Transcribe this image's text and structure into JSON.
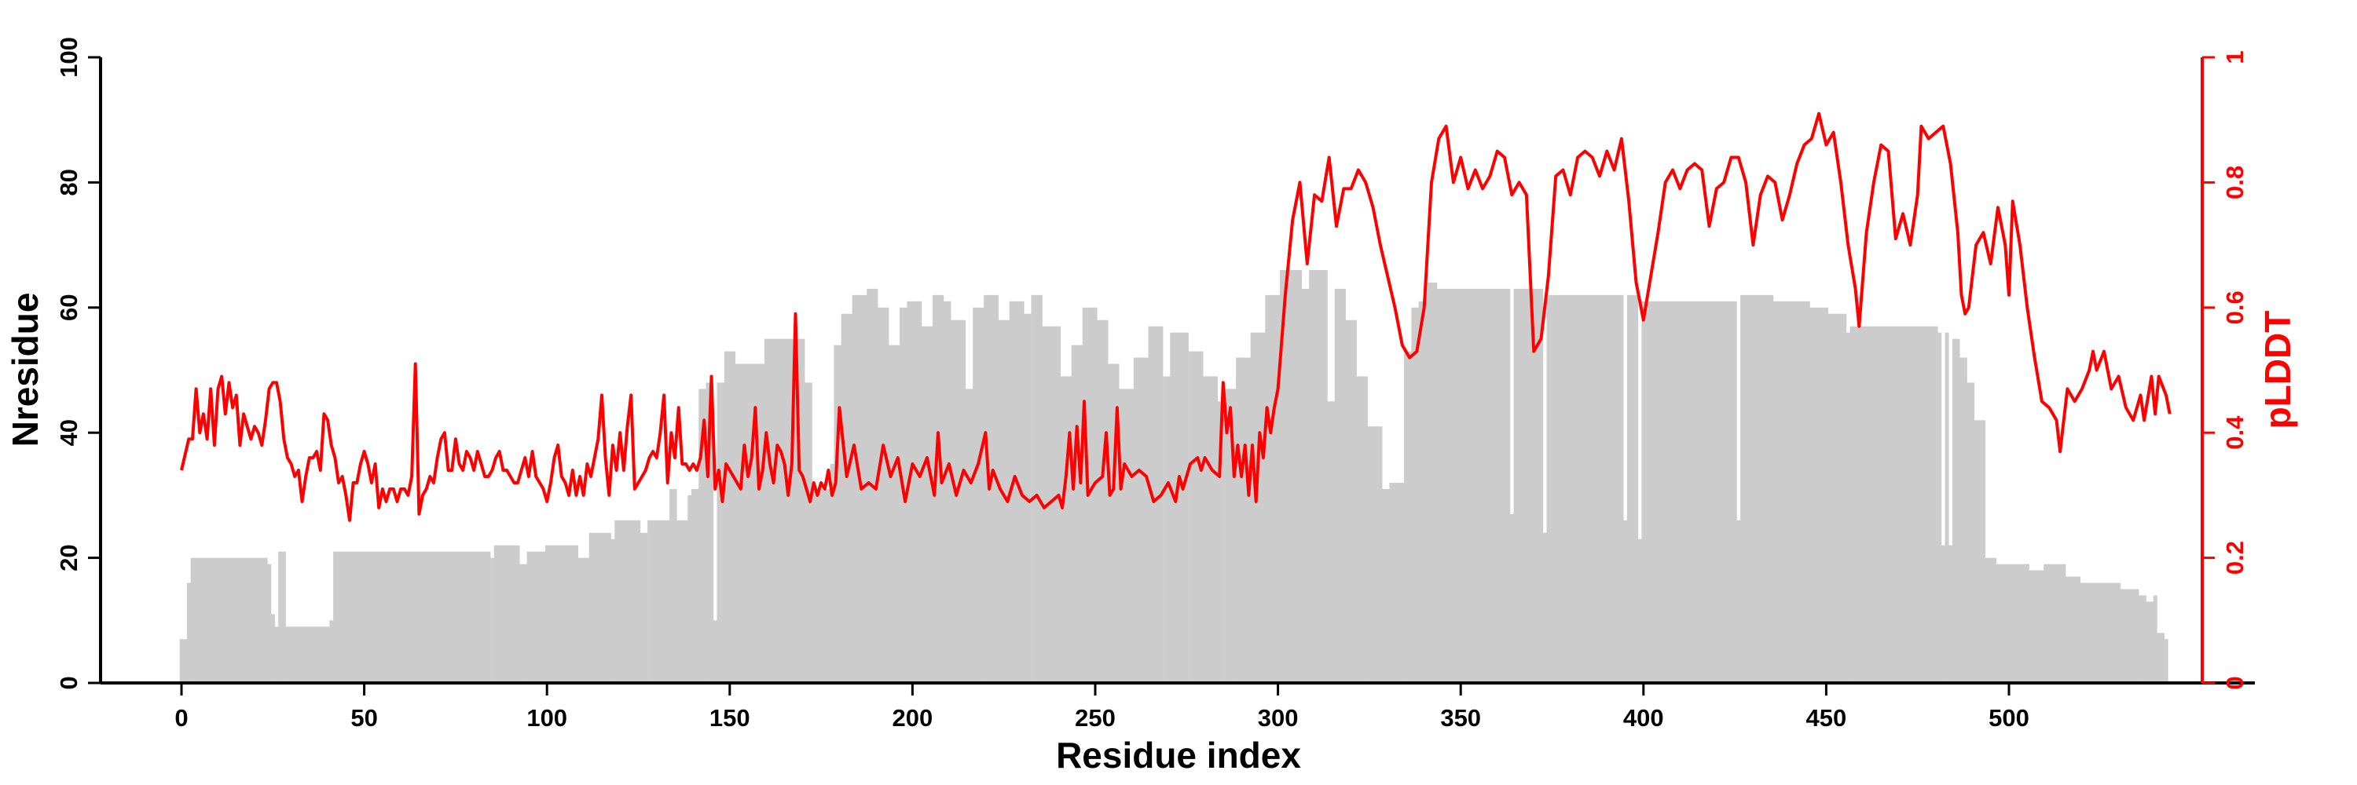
{
  "chart_data": {
    "type": "bar+line",
    "xlabel": "Residue index",
    "ylabel": "Nresidue",
    "y2label": "pLDDT",
    "xlim": [
      -10,
      560
    ],
    "ylim": [
      0,
      100
    ],
    "y2lim": [
      0,
      1
    ],
    "xticks": [
      "0",
      "50",
      "100",
      "150",
      "200",
      "250",
      "300",
      "350",
      "400",
      "450",
      "500"
    ],
    "yticks": [
      "0",
      "20",
      "40",
      "60",
      "80",
      "100"
    ],
    "y2ticks": [
      "0",
      "0.2",
      "0.4",
      "0.6",
      "0.8",
      "1"
    ],
    "colors": {
      "bars": "#cccccc",
      "line": "#ff0000",
      "axis": "#000000",
      "y2axis": "#ff0000"
    },
    "bars_runs_note": "Nresidue per residue as [start, end, value]",
    "nresidue_runs": [
      [
        0,
        1,
        7
      ],
      [
        2,
        2,
        16
      ],
      [
        3,
        23,
        20
      ],
      [
        24,
        24,
        19
      ],
      [
        25,
        25,
        11
      ],
      [
        26,
        26,
        9
      ],
      [
        27,
        28,
        21
      ],
      [
        29,
        40,
        9
      ],
      [
        41,
        41,
        10
      ],
      [
        42,
        84,
        21
      ],
      [
        85,
        85,
        20
      ],
      [
        86,
        92,
        22
      ],
      [
        93,
        94,
        19
      ],
      [
        95,
        99,
        21
      ],
      [
        100,
        108,
        22
      ],
      [
        109,
        111,
        20
      ],
      [
        112,
        117,
        24
      ],
      [
        118,
        118,
        23
      ],
      [
        119,
        125,
        26
      ],
      [
        126,
        127,
        24
      ],
      [
        128,
        133,
        26
      ],
      [
        134,
        135,
        31
      ],
      [
        136,
        138,
        26
      ],
      [
        139,
        139,
        30
      ],
      [
        140,
        141,
        31
      ],
      [
        142,
        143,
        47
      ],
      [
        144,
        145,
        48
      ],
      [
        146,
        146,
        10
      ],
      [
        147,
        148,
        48
      ],
      [
        149,
        151,
        53
      ],
      [
        152,
        159,
        51
      ],
      [
        160,
        170,
        55
      ],
      [
        171,
        172,
        48
      ],
      [
        173,
        177,
        31
      ],
      [
        178,
        178,
        35
      ],
      [
        179,
        180,
        54
      ],
      [
        181,
        183,
        59
      ],
      [
        184,
        187,
        62
      ],
      [
        188,
        190,
        63
      ],
      [
        191,
        193,
        60
      ],
      [
        194,
        196,
        54
      ],
      [
        197,
        198,
        60
      ],
      [
        199,
        202,
        61
      ],
      [
        203,
        205,
        57
      ],
      [
        206,
        208,
        62
      ],
      [
        209,
        210,
        61
      ],
      [
        211,
        214,
        58
      ],
      [
        215,
        216,
        47
      ],
      [
        217,
        219,
        60
      ],
      [
        220,
        223,
        62
      ],
      [
        224,
        226,
        58
      ],
      [
        227,
        230,
        61
      ],
      [
        231,
        232,
        59
      ],
      [
        233,
        235,
        62
      ],
      [
        236,
        240,
        57
      ],
      [
        241,
        243,
        49
      ],
      [
        244,
        246,
        54
      ],
      [
        247,
        250,
        60
      ],
      [
        251,
        253,
        58
      ],
      [
        254,
        256,
        51
      ],
      [
        257,
        260,
        47
      ],
      [
        261,
        264,
        52
      ],
      [
        265,
        268,
        57
      ],
      [
        269,
        270,
        49
      ],
      [
        271,
        275,
        56
      ],
      [
        276,
        279,
        53
      ],
      [
        280,
        283,
        49
      ],
      [
        284,
        285,
        45
      ],
      [
        286,
        288,
        47
      ],
      [
        289,
        292,
        52
      ],
      [
        293,
        296,
        56
      ],
      [
        297,
        300,
        62
      ],
      [
        301,
        306,
        66
      ],
      [
        307,
        308,
        63
      ],
      [
        309,
        313,
        66
      ],
      [
        314,
        315,
        45
      ],
      [
        316,
        318,
        63
      ],
      [
        319,
        321,
        58
      ],
      [
        322,
        324,
        49
      ],
      [
        325,
        328,
        41
      ],
      [
        329,
        330,
        31
      ],
      [
        331,
        334,
        32
      ],
      [
        335,
        336,
        53
      ],
      [
        337,
        338,
        60
      ],
      [
        339,
        340,
        61
      ],
      [
        341,
        343,
        64
      ],
      [
        344,
        363,
        63
      ],
      [
        364,
        364,
        27
      ],
      [
        365,
        372,
        63
      ],
      [
        373,
        373,
        24
      ],
      [
        374,
        394,
        62
      ],
      [
        395,
        395,
        26
      ],
      [
        396,
        398,
        62
      ],
      [
        399,
        399,
        23
      ],
      [
        400,
        425,
        61
      ],
      [
        426,
        426,
        26
      ],
      [
        427,
        435,
        62
      ],
      [
        436,
        445,
        61
      ],
      [
        446,
        450,
        60
      ],
      [
        451,
        455,
        59
      ],
      [
        456,
        456,
        56
      ],
      [
        457,
        480,
        57
      ],
      [
        481,
        481,
        56
      ],
      [
        482,
        482,
        22
      ],
      [
        483,
        483,
        56
      ],
      [
        484,
        484,
        22
      ],
      [
        485,
        486,
        55
      ],
      [
        487,
        488,
        52
      ],
      [
        489,
        490,
        48
      ],
      [
        491,
        493,
        42
      ],
      [
        494,
        496,
        20
      ],
      [
        497,
        505,
        19
      ],
      [
        506,
        509,
        18
      ],
      [
        510,
        515,
        19
      ],
      [
        516,
        519,
        17
      ],
      [
        520,
        530,
        16
      ],
      [
        531,
        535,
        15
      ],
      [
        536,
        537,
        14
      ],
      [
        538,
        539,
        13
      ],
      [
        540,
        540,
        14
      ],
      [
        541,
        542,
        8
      ],
      [
        543,
        543,
        7
      ]
    ],
    "plddt_x": [
      0,
      2,
      3,
      4,
      5,
      6,
      7,
      8,
      9,
      10,
      11,
      12,
      13,
      14,
      15,
      16,
      17,
      18,
      19,
      20,
      21,
      22,
      23,
      24,
      25,
      26,
      27,
      28,
      29,
      30,
      31,
      32,
      33,
      34,
      35,
      36,
      37,
      38,
      39,
      40,
      41,
      42,
      43,
      44,
      45,
      46,
      47,
      48,
      49,
      50,
      51,
      52,
      53,
      54,
      55,
      56,
      57,
      58,
      59,
      60,
      61,
      62,
      63,
      64,
      65,
      66,
      67,
      68,
      69,
      70,
      71,
      72,
      73,
      74,
      75,
      76,
      77,
      78,
      79,
      80,
      81,
      82,
      83,
      84,
      85,
      86,
      87,
      88,
      89,
      90,
      91,
      92,
      93,
      94,
      95,
      96,
      97,
      98,
      99,
      100,
      101,
      102,
      103,
      104,
      105,
      106,
      107,
      108,
      109,
      110,
      111,
      112,
      113,
      114,
      115,
      116,
      117,
      118,
      119,
      120,
      121,
      122,
      123,
      124,
      125,
      126,
      127,
      128,
      129,
      130,
      131,
      132,
      133,
      134,
      135,
      136,
      137,
      138,
      139,
      140,
      141,
      142,
      143,
      144,
      145,
      146,
      147,
      148,
      149,
      150,
      151,
      152,
      153,
      154,
      155,
      156,
      157,
      158,
      159,
      160,
      161,
      162,
      163,
      164,
      165,
      166,
      167,
      168,
      169,
      170,
      171,
      172,
      173,
      174,
      175,
      176,
      177,
      178,
      179,
      180,
      182,
      184,
      186,
      188,
      190,
      192,
      194,
      196,
      198,
      200,
      202,
      204,
      206,
      207,
      208,
      210,
      212,
      214,
      216,
      218,
      220,
      221,
      222,
      224,
      226,
      228,
      230,
      232,
      234,
      236,
      238,
      240,
      241,
      242,
      243,
      244,
      245,
      246,
      247,
      248,
      249,
      250,
      252,
      253,
      254,
      255,
      256,
      257,
      258,
      260,
      262,
      264,
      266,
      268,
      270,
      272,
      273,
      274,
      276,
      278,
      279,
      280,
      282,
      284,
      285,
      286,
      287,
      288,
      289,
      290,
      291,
      292,
      293,
      294,
      295,
      296,
      297,
      298,
      299,
      300,
      302,
      304,
      306,
      308,
      310,
      312,
      314,
      316,
      318,
      320,
      322,
      324,
      326,
      328,
      330,
      332,
      334,
      336,
      338,
      340,
      342,
      344,
      346,
      348,
      350,
      352,
      354,
      356,
      358,
      360,
      362,
      364,
      366,
      368,
      370,
      372,
      374,
      376,
      378,
      380,
      382,
      384,
      386,
      388,
      390,
      392,
      394,
      396,
      398,
      400,
      402,
      404,
      406,
      408,
      410,
      412,
      414,
      416,
      418,
      420,
      422,
      424,
      426,
      428,
      430,
      432,
      434,
      436,
      438,
      440,
      442,
      444,
      446,
      448,
      450,
      452,
      454,
      456,
      458,
      459,
      461,
      463,
      465,
      467,
      469,
      471,
      473,
      475,
      476,
      478,
      480,
      482,
      484,
      486,
      487,
      488,
      489,
      491,
      493,
      495,
      497,
      499,
      500,
      501,
      503,
      505,
      507,
      509,
      511,
      513,
      514,
      516,
      518,
      520,
      522,
      523,
      524,
      526,
      528,
      530,
      532,
      534,
      536,
      537,
      539,
      540,
      541,
      543,
      544
    ],
    "plddt_y": [
      0.34,
      0.39,
      0.39,
      0.47,
      0.4,
      0.43,
      0.39,
      0.47,
      0.38,
      0.47,
      0.49,
      0.43,
      0.48,
      0.44,
      0.46,
      0.38,
      0.43,
      0.41,
      0.39,
      0.41,
      0.4,
      0.38,
      0.42,
      0.47,
      0.48,
      0.48,
      0.45,
      0.39,
      0.36,
      0.35,
      0.33,
      0.34,
      0.29,
      0.33,
      0.36,
      0.36,
      0.37,
      0.34,
      0.43,
      0.42,
      0.38,
      0.36,
      0.32,
      0.33,
      0.3,
      0.26,
      0.32,
      0.32,
      0.35,
      0.37,
      0.35,
      0.32,
      0.35,
      0.28,
      0.31,
      0.29,
      0.31,
      0.31,
      0.29,
      0.31,
      0.31,
      0.3,
      0.33,
      0.51,
      0.27,
      0.3,
      0.31,
      0.33,
      0.32,
      0.36,
      0.39,
      0.4,
      0.34,
      0.34,
      0.39,
      0.35,
      0.34,
      0.37,
      0.36,
      0.34,
      0.37,
      0.35,
      0.33,
      0.33,
      0.34,
      0.36,
      0.37,
      0.34,
      0.34,
      0.33,
      0.32,
      0.32,
      0.34,
      0.36,
      0.33,
      0.37,
      0.33,
      0.32,
      0.31,
      0.29,
      0.32,
      0.36,
      0.38,
      0.33,
      0.32,
      0.3,
      0.34,
      0.3,
      0.33,
      0.3,
      0.35,
      0.33,
      0.36,
      0.39,
      0.46,
      0.36,
      0.3,
      0.38,
      0.34,
      0.4,
      0.34,
      0.41,
      0.46,
      0.31,
      0.32,
      0.33,
      0.34,
      0.36,
      0.37,
      0.36,
      0.4,
      0.46,
      0.32,
      0.4,
      0.36,
      0.44,
      0.35,
      0.35,
      0.34,
      0.35,
      0.34,
      0.36,
      0.42,
      0.33,
      0.49,
      0.31,
      0.34,
      0.29,
      0.35,
      0.34,
      0.33,
      0.32,
      0.31,
      0.38,
      0.33,
      0.36,
      0.44,
      0.31,
      0.34,
      0.4,
      0.35,
      0.32,
      0.38,
      0.37,
      0.35,
      0.3,
      0.35,
      0.59,
      0.34,
      0.33,
      0.31,
      0.29,
      0.32,
      0.3,
      0.32,
      0.31,
      0.34,
      0.3,
      0.32,
      0.44,
      0.33,
      0.38,
      0.31,
      0.32,
      0.31,
      0.38,
      0.33,
      0.36,
      0.29,
      0.35,
      0.33,
      0.36,
      0.3,
      0.4,
      0.32,
      0.35,
      0.3,
      0.34,
      0.32,
      0.35,
      0.4,
      0.31,
      0.34,
      0.31,
      0.29,
      0.33,
      0.3,
      0.29,
      0.3,
      0.28,
      0.29,
      0.3,
      0.28,
      0.33,
      0.4,
      0.31,
      0.41,
      0.32,
      0.45,
      0.3,
      0.31,
      0.32,
      0.33,
      0.4,
      0.3,
      0.31,
      0.44,
      0.31,
      0.35,
      0.33,
      0.34,
      0.33,
      0.29,
      0.3,
      0.32,
      0.29,
      0.33,
      0.31,
      0.35,
      0.36,
      0.34,
      0.36,
      0.34,
      0.33,
      0.48,
      0.4,
      0.44,
      0.33,
      0.38,
      0.33,
      0.38,
      0.3,
      0.38,
      0.29,
      0.4,
      0.36,
      0.44,
      0.4,
      0.44,
      0.47,
      0.62,
      0.74,
      0.8,
      0.67,
      0.78,
      0.77,
      0.84,
      0.73,
      0.79,
      0.79,
      0.82,
      0.8,
      0.76,
      0.7,
      0.65,
      0.6,
      0.54,
      0.52,
      0.53,
      0.6,
      0.8,
      0.87,
      0.89,
      0.8,
      0.84,
      0.79,
      0.82,
      0.79,
      0.81,
      0.85,
      0.84,
      0.78,
      0.8,
      0.78,
      0.53,
      0.55,
      0.65,
      0.81,
      0.82,
      0.78,
      0.84,
      0.85,
      0.84,
      0.81,
      0.85,
      0.82,
      0.87,
      0.77,
      0.64,
      0.58,
      0.65,
      0.72,
      0.8,
      0.82,
      0.79,
      0.82,
      0.83,
      0.82,
      0.73,
      0.79,
      0.8,
      0.84,
      0.84,
      0.8,
      0.7,
      0.78,
      0.81,
      0.8,
      0.74,
      0.78,
      0.83,
      0.86,
      0.87,
      0.91,
      0.86,
      0.88,
      0.8,
      0.7,
      0.63,
      0.57,
      0.72,
      0.8,
      0.86,
      0.85,
      0.71,
      0.75,
      0.7,
      0.78,
      0.89,
      0.87,
      0.88,
      0.89,
      0.83,
      0.72,
      0.62,
      0.59,
      0.6,
      0.7,
      0.72,
      0.67,
      0.76,
      0.7,
      0.62,
      0.77,
      0.7,
      0.6,
      0.52,
      0.45,
      0.44,
      0.42,
      0.37,
      0.47,
      0.45,
      0.47,
      0.5,
      0.53,
      0.5,
      0.53,
      0.47,
      0.49,
      0.44,
      0.42,
      0.46,
      0.42,
      0.49,
      0.43,
      0.49,
      0.46,
      0.43
    ]
  }
}
